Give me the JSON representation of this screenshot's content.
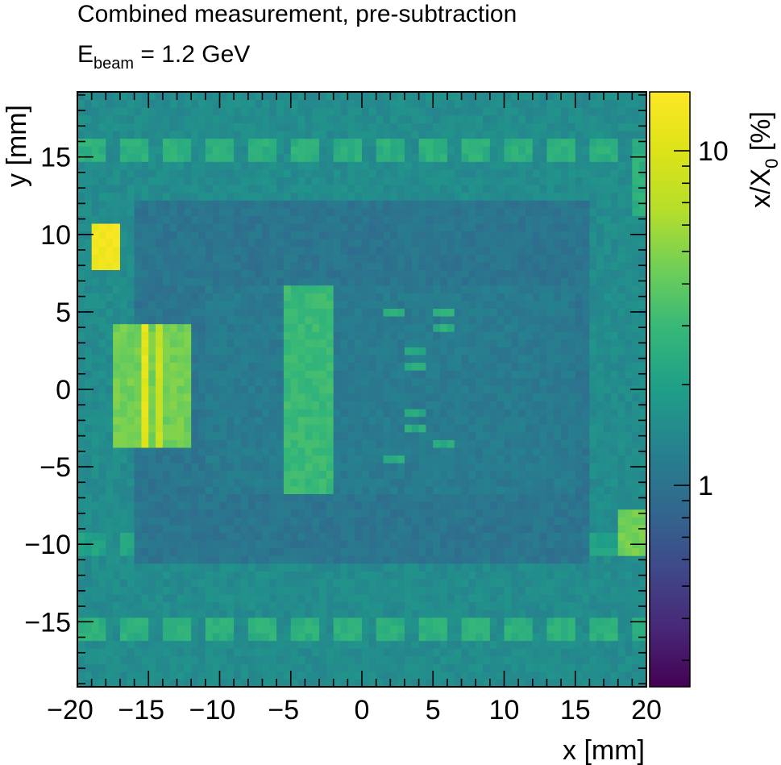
{
  "title_line1": "Combined measurement, pre-subtraction",
  "title_line2": {
    "main": "E",
    "sub": "beam",
    "rest": " = 1.2 GeV"
  },
  "chart_data": {
    "type": "heatmap",
    "xlabel": "x [mm]",
    "ylabel": "y [mm]",
    "zlabel": {
      "main": "x/X",
      "sub": "0",
      "rest": " [%]"
    },
    "xlim": [
      -20,
      20
    ],
    "ylim": [
      -19.2,
      19.2
    ],
    "zlim": [
      0.25,
      15
    ],
    "zscale": "log",
    "xticks": [
      -20,
      -15,
      -10,
      -5,
      0,
      5,
      10,
      15,
      20
    ],
    "xtick_labels": [
      "−20",
      "−15",
      "−10",
      "−5",
      "0",
      "5",
      "10",
      "15",
      "20"
    ],
    "yticks": [
      -15,
      -10,
      -5,
      0,
      5,
      10,
      15
    ],
    "ytick_labels": [
      "−15",
      "−10",
      "−5",
      "0",
      "5",
      "10",
      "15"
    ],
    "zticks": [
      1,
      10
    ],
    "ztick_labels": [
      "1",
      "10"
    ],
    "colormap": "viridis",
    "colors": {
      "low": "#440154",
      "mid": "#21918c",
      "high": "#fde725"
    },
    "background_value": 1.5,
    "regions": [
      {
        "name": "inner frame",
        "x": [
          -16,
          16
        ],
        "y": [
          -11,
          12
        ],
        "value": 1.05
      },
      {
        "name": "inner window",
        "x": [
          -11,
          15
        ],
        "y": [
          -6.5,
          6.5
        ],
        "value": 1.15
      },
      {
        "name": "bright patch upper left",
        "x": [
          -19.2,
          -17.2
        ],
        "y": [
          7.5,
          10.8
        ],
        "value": 13
      },
      {
        "name": "chip block left",
        "x": [
          -17.5,
          -12.2
        ],
        "y": [
          -3.9,
          4.0
        ],
        "value": 4.5
      },
      {
        "name": "chip column left A",
        "x": [
          -15.3,
          -14.8
        ],
        "y": [
          -3.9,
          4.0
        ],
        "value": 11
      },
      {
        "name": "chip column left B",
        "x": [
          -14.3,
          -13.8
        ],
        "y": [
          -3.9,
          4.0
        ],
        "value": 8
      },
      {
        "name": "central strip",
        "x": [
          -5.5,
          -2.0
        ],
        "y": [
          -6.8,
          6.8
        ],
        "value": 3.0
      },
      {
        "name": "right edge patch",
        "x": [
          18.2,
          20
        ],
        "y": [
          -10.5,
          -7.5
        ],
        "value": 4.5
      },
      {
        "name": "right edge strip upper",
        "x": [
          18.8,
          20
        ],
        "y": [
          11,
          15
        ],
        "value": 2.6
      },
      {
        "name": "small pad 1",
        "x": [
          1.5,
          2.8
        ],
        "y": [
          4.5,
          5.0
        ],
        "value": 2.6
      },
      {
        "name": "small pad 2",
        "x": [
          5.0,
          6.5
        ],
        "y": [
          4.5,
          5.0
        ],
        "value": 2.6
      },
      {
        "name": "small pad 3",
        "x": [
          5.0,
          6.5
        ],
        "y": [
          3.5,
          4.0
        ],
        "value": 2.6
      },
      {
        "name": "small pad 4",
        "x": [
          3.0,
          4.5
        ],
        "y": [
          2.0,
          2.5
        ],
        "value": 2.4
      },
      {
        "name": "small pad 5",
        "x": [
          3.0,
          4.5
        ],
        "y": [
          1.0,
          1.5
        ],
        "value": 2.4
      },
      {
        "name": "small pad 6",
        "x": [
          3.0,
          4.5
        ],
        "y": [
          -1.5,
          -1.0
        ],
        "value": 2.4
      },
      {
        "name": "small pad 7",
        "x": [
          3.0,
          4.5
        ],
        "y": [
          -2.5,
          -2.0
        ],
        "value": 2.4
      },
      {
        "name": "small pad 8",
        "x": [
          5.0,
          6.5
        ],
        "y": [
          -3.5,
          -3.0
        ],
        "value": 2.4
      },
      {
        "name": "small pad 9",
        "x": [
          1.5,
          2.8
        ],
        "y": [
          -4.8,
          -4.3
        ],
        "value": 2.6
      }
    ],
    "stripe_rows": [
      {
        "y": [
          14.8,
          16.0
        ],
        "value": 2.6
      },
      {
        "y": [
          -16.0,
          -14.8
        ],
        "value": 2.6
      },
      {
        "y": [
          -10.5,
          -9.0
        ],
        "value": 2.1
      }
    ]
  }
}
